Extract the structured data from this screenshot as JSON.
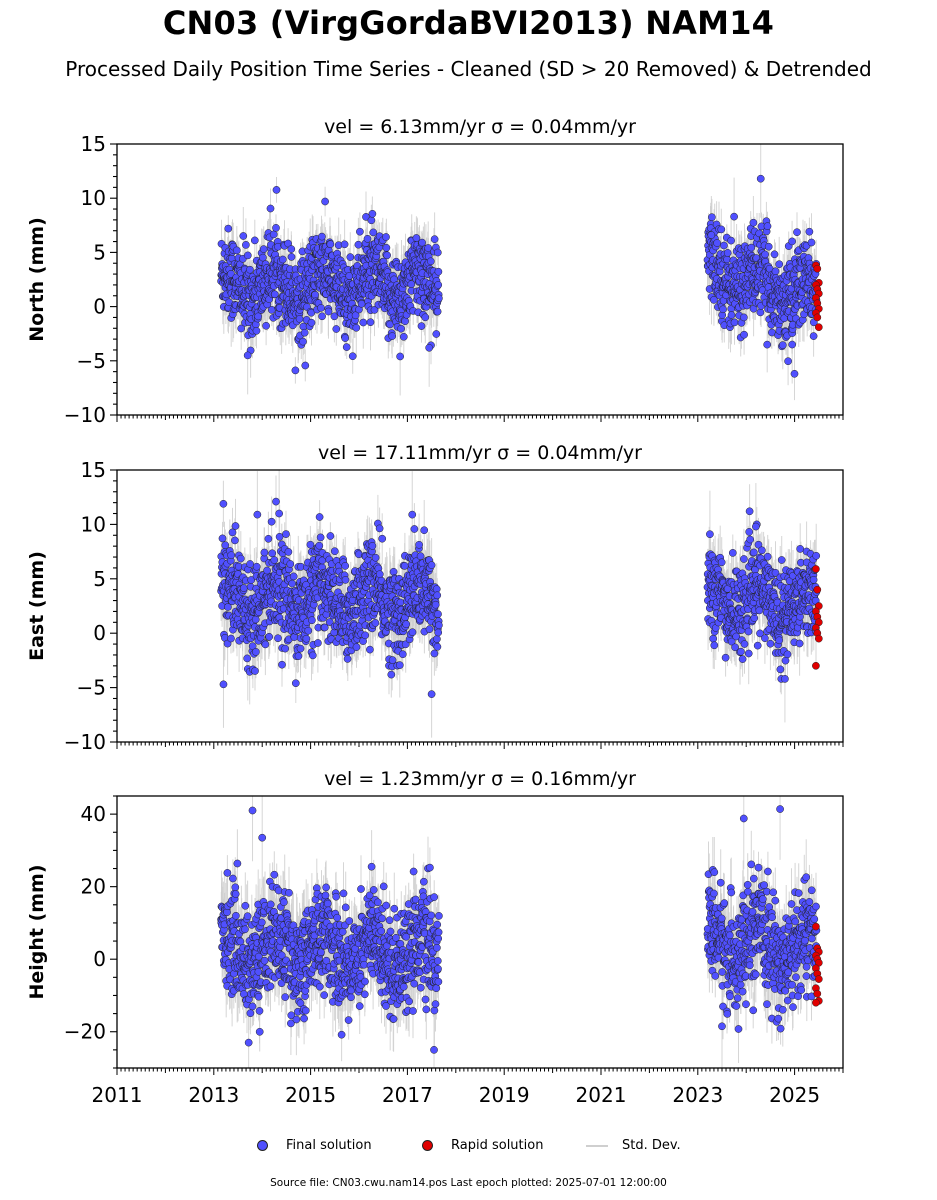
{
  "title": "CN03 (VirgGordaBVI2013) NAM14",
  "subtitle": "Processed Daily Position Time Series - Cleaned (SD > 20 Removed) & Detrended",
  "legend": {
    "final": "Final solution",
    "rapid": "Rapid solution",
    "std": "Std. Dev."
  },
  "footer": "Source file: CN03.cwu.nam14.pos  Last epoch plotted: 2025-07-01 12:00:00",
  "colors": {
    "final": "#5050ff",
    "rapid": "#e00000",
    "std": "#cfcfcf",
    "marker_edge": "#222222"
  },
  "chart_data": [
    {
      "type": "scatter",
      "title": "vel = 6.13mm/yr   σ = 0.04mm/yr",
      "ylabel": "North (mm)",
      "xlim": [
        2011.0,
        2026.0
      ],
      "ylim": [
        -10,
        15
      ],
      "yticks": [
        -10,
        -5,
        0,
        5,
        10,
        15
      ],
      "yminor": 1,
      "xticks": [
        2011,
        2013,
        2015,
        2017,
        2019,
        2021,
        2023,
        2025
      ],
      "show_xtick_labels": false,
      "segments": [
        {
          "x": [
            2013.15,
            2017.65
          ],
          "center": [
            2.0,
            2.0
          ],
          "spread": 2.0,
          "sd": 1.8
        },
        {
          "x": [
            2023.2,
            2025.45
          ],
          "center": [
            3.5,
            0.8
          ],
          "spread": 2.0,
          "sd": 1.8
        }
      ],
      "final_highlights": [
        {
          "x": 2013.7,
          "y": -4.5
        },
        {
          "x": 2016.85,
          "y": -4.6
        },
        {
          "x": 2017.45,
          "y": -3.8
        },
        {
          "x": 2024.3,
          "y": 11.8
        },
        {
          "x": 2023.28,
          "y": 6.6
        },
        {
          "x": 2023.75,
          "y": 8.3
        },
        {
          "x": 2024.95,
          "y": -3.5
        }
      ],
      "rapid": {
        "x_start": 2025.44,
        "x_end": 2025.5,
        "y": [
          3.8,
          3.5,
          2.2,
          2.0,
          1.6,
          1.2,
          0.8,
          0.3,
          -0.2,
          -0.6,
          -1.0,
          -1.9
        ]
      }
    },
    {
      "type": "scatter",
      "title": "vel = 17.11mm/yr   σ = 0.04mm/yr",
      "ylabel": "East (mm)",
      "xlim": [
        2011.0,
        2026.0
      ],
      "ylim": [
        -10,
        15
      ],
      "yticks": [
        -10,
        -5,
        0,
        5,
        10,
        15
      ],
      "yminor": 1,
      "xticks": [
        2011,
        2013,
        2015,
        2017,
        2019,
        2021,
        2023,
        2025
      ],
      "show_xtick_labels": false,
      "segments": [
        {
          "x": [
            2013.15,
            2017.65
          ],
          "center": [
            3.5,
            2.8
          ],
          "spread": 2.2,
          "sd": 2.0
        },
        {
          "x": [
            2023.2,
            2025.45
          ],
          "center": [
            3.2,
            2.8
          ],
          "spread": 2.0,
          "sd": 2.0
        }
      ],
      "final_highlights": [
        {
          "x": 2013.2,
          "y": -4.7
        },
        {
          "x": 2013.9,
          "y": 10.9
        },
        {
          "x": 2014.35,
          "y": 11.0
        },
        {
          "x": 2017.1,
          "y": 10.9
        },
        {
          "x": 2017.5,
          "y": -5.6
        },
        {
          "x": 2023.25,
          "y": 9.1
        },
        {
          "x": 2024.2,
          "y": 9.8
        },
        {
          "x": 2024.8,
          "y": -4.2
        }
      ],
      "rapid": {
        "x_start": 2025.44,
        "x_end": 2025.5,
        "y": [
          5.9,
          4.0,
          2.5,
          2.0,
          1.5,
          1.0,
          0.5,
          0.0,
          -0.5,
          -3.0
        ]
      }
    },
    {
      "type": "scatter",
      "title": "vel = 1.23mm/yr   σ = 0.16mm/yr",
      "ylabel": "Height (mm)",
      "xlim": [
        2011.0,
        2026.0
      ],
      "ylim": [
        -30,
        45
      ],
      "yticks": [
        -20,
        0,
        20,
        40
      ],
      "yminor": 5,
      "xticks": [
        2011,
        2013,
        2015,
        2017,
        2019,
        2021,
        2023,
        2025
      ],
      "xticklabels": [
        "2011",
        "2013",
        "2015",
        "2017",
        "2019",
        "2021",
        "2023",
        "2025"
      ],
      "show_xtick_labels": true,
      "segments": [
        {
          "x": [
            2013.15,
            2017.65
          ],
          "center": [
            3.0,
            2.0
          ],
          "spread": 7.0,
          "sd": 7.0
        },
        {
          "x": [
            2023.2,
            2025.45
          ],
          "center": [
            5.0,
            2.0
          ],
          "spread": 7.0,
          "sd": 7.0
        }
      ],
      "final_highlights": [
        {
          "x": 2013.8,
          "y": 41.0
        },
        {
          "x": 2014.0,
          "y": 33.5
        },
        {
          "x": 2013.72,
          "y": -23.0
        },
        {
          "x": 2017.55,
          "y": -25.0
        },
        {
          "x": 2023.95,
          "y": 38.8
        },
        {
          "x": 2024.7,
          "y": 41.4
        },
        {
          "x": 2023.5,
          "y": -18.5
        }
      ],
      "rapid": {
        "x_start": 2025.44,
        "x_end": 2025.5,
        "y": [
          9.0,
          3.0,
          2.0,
          1.0,
          0.0,
          -1.0,
          -2.5,
          -4.0,
          -5.5,
          -8.0,
          -9.5,
          -11.5,
          -12.0
        ]
      }
    }
  ]
}
